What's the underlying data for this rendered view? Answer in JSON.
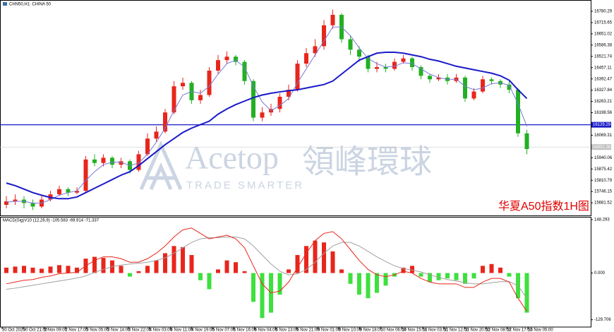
{
  "chart_data": [
    {
      "type": "candlestick",
      "title": "CHN50,H1: CHINA 50",
      "annotation": "华夏A50指数1H图",
      "watermark": {
        "brand": "Acetop",
        "chinese": "領峰環球",
        "tagline": "TRADE SMARTER"
      },
      "time_labels": [
        "30 Oct 2020",
        "30 Oct 21:00",
        "2 Nov 09:00",
        "2 Nov 17:00",
        "3 Nov 05:00",
        "3 Nov 14:00",
        "3 Nov 22:00",
        "4 Nov 03:00",
        "4 Nov 11:00",
        "4 Nov 19:00",
        "5 Nov 07:00",
        "5 Nov 16:00",
        "6 Nov 04:00",
        "6 Nov 13:00",
        "6 Nov 21:00",
        "9 Nov 01:00",
        "9 Nov 10:00",
        "9 Nov 18:00",
        "10 Nov 06:00",
        "10 Nov 15:00",
        "11 Nov 03:00",
        "11 Nov 12:00",
        "11 Nov 20:00",
        "12 Nov 08:00",
        "12 Nov 17:00",
        "13 Nov 05:00"
      ],
      "open": [
        15670,
        15690,
        15700,
        15680,
        15660,
        15700,
        15730,
        15760,
        15740,
        15750,
        15930,
        15910,
        15940,
        15900,
        15920,
        15870,
        15960,
        16050,
        16090,
        16200,
        16350,
        16370,
        16270,
        16300,
        16440,
        16500,
        16520,
        16490,
        16380,
        16170,
        16200,
        16220,
        16290,
        16330,
        16480,
        16540,
        16580,
        16700,
        16760,
        16620,
        16560,
        16520,
        16450,
        16460,
        16450,
        16490,
        16510,
        16460,
        16410,
        16390,
        16400,
        16380,
        16400,
        16280,
        16320,
        16390,
        16380,
        16360,
        16330,
        16080
      ],
      "high": [
        15720,
        15730,
        15720,
        15700,
        15720,
        15750,
        15780,
        15770,
        15770,
        15950,
        15960,
        15960,
        15950,
        15940,
        15930,
        15980,
        16080,
        16120,
        16220,
        16380,
        16400,
        16380,
        16330,
        16460,
        16530,
        16550,
        16530,
        16500,
        16390,
        16230,
        16250,
        16310,
        16360,
        16500,
        16570,
        16620,
        16730,
        16790,
        16770,
        16640,
        16580,
        16530,
        16490,
        16480,
        16510,
        16530,
        16520,
        16470,
        16420,
        16420,
        16420,
        16420,
        16410,
        16340,
        16410,
        16400,
        16390,
        16380,
        16340,
        16100
      ],
      "low": [
        15650,
        15670,
        15650,
        15640,
        15650,
        15690,
        15720,
        15720,
        15730,
        15740,
        15890,
        15890,
        15880,
        15880,
        15850,
        15860,
        15950,
        16030,
        16080,
        16190,
        16330,
        16250,
        16250,
        16290,
        16420,
        16480,
        16470,
        16360,
        16150,
        16150,
        16180,
        16200,
        16270,
        16320,
        16460,
        16520,
        16560,
        16680,
        16600,
        16530,
        16490,
        16430,
        16430,
        16430,
        16440,
        16480,
        16440,
        16390,
        16370,
        16380,
        16360,
        16370,
        16260,
        16270,
        16310,
        16360,
        16340,
        16310,
        16060,
        15960
      ],
      "close": [
        15690,
        15700,
        15680,
        15660,
        15700,
        15730,
        15760,
        15740,
        15750,
        15930,
        15910,
        15940,
        15900,
        15920,
        15870,
        15960,
        16050,
        16090,
        16200,
        16350,
        16370,
        16270,
        16300,
        16440,
        16500,
        16520,
        16490,
        16380,
        16170,
        16200,
        16220,
        16290,
        16330,
        16480,
        16540,
        16580,
        16700,
        16760,
        16620,
        16560,
        16520,
        16450,
        16460,
        16450,
        16490,
        16510,
        16460,
        16410,
        16390,
        16400,
        16380,
        16400,
        16280,
        16320,
        16390,
        16380,
        16360,
        16330,
        16080,
        15990
      ],
      "up_color": "#e8261c",
      "down_color": "#22b022",
      "overlays": [
        {
          "color": "#7878d8",
          "width": 1,
          "values": [
            15685,
            15690,
            15690,
            15680,
            15680,
            15700,
            15725,
            15740,
            15750,
            15810,
            15860,
            15900,
            15915,
            15915,
            15895,
            15910,
            15960,
            16030,
            16110,
            16210,
            16300,
            16320,
            16310,
            16350,
            16420,
            16480,
            16500,
            16460,
            16350,
            16260,
            16210,
            16240,
            16280,
            16370,
            16450,
            16530,
            16610,
            16690,
            16690,
            16640,
            16570,
            16510,
            16480,
            16460,
            16465,
            16485,
            16480,
            16450,
            16420,
            16400,
            16390,
            16390,
            16350,
            16330,
            16340,
            16365,
            16370,
            16355,
            16250,
            16120
          ]
        },
        {
          "color": "#1a1ac8",
          "width": 2,
          "values": [
            15795,
            15780,
            15760,
            15740,
            15725,
            15712,
            15705,
            15705,
            15715,
            15740,
            15765,
            15790,
            15815,
            15840,
            15860,
            15895,
            15935,
            15975,
            16015,
            16050,
            16085,
            16110,
            16130,
            16150,
            16190,
            16220,
            16245,
            16265,
            16285,
            16300,
            16310,
            16318,
            16325,
            16330,
            16340,
            16350,
            16360,
            16380,
            16420,
            16460,
            16500,
            16520,
            16540,
            16545,
            16545,
            16540,
            16530,
            16520,
            16505,
            16495,
            16480,
            16465,
            16455,
            16445,
            16435,
            16425,
            16410,
            16385,
            16330,
            16280
          ]
        }
      ],
      "hline_price": 16129.29,
      "hline_color": "#1a1ac8",
      "last_price": 16001.38,
      "ylim": [
        15609,
        16841
      ],
      "yticks": [
        16780.29,
        16715.65,
        16651.02,
        16586.38,
        16521.74,
        16457.11,
        16392.47,
        16327.84,
        16263.21,
        16198.56,
        16069.31,
        15940.06,
        15875.42,
        15810.79,
        15746.15,
        15681.52
      ]
    },
    {
      "type": "macd",
      "title": "MACD(Sig)V10 (12,26,9) -105.583 -69.914 -71.337",
      "histogram": [
        15,
        18,
        20,
        15,
        12,
        18,
        22,
        20,
        15,
        40,
        45,
        42,
        35,
        20,
        -10,
        5,
        20,
        35,
        55,
        75,
        72,
        50,
        -20,
        -45,
        10,
        35,
        30,
        5,
        -80,
        -125,
        -110,
        -60,
        10,
        50,
        75,
        90,
        85,
        60,
        10,
        -30,
        -60,
        -70,
        -55,
        -35,
        -10,
        15,
        20,
        -10,
        -25,
        -20,
        -15,
        -20,
        -30,
        -15,
        20,
        25,
        15,
        -10,
        -70,
        -110
      ],
      "main": [
        -30,
        -25,
        -20,
        -18,
        -12,
        -8,
        -2,
        0,
        2,
        20,
        35,
        45,
        45,
        40,
        30,
        30,
        40,
        55,
        75,
        100,
        120,
        125,
        110,
        95,
        100,
        105,
        95,
        70,
        20,
        -30,
        -55,
        -50,
        -25,
        15,
        55,
        90,
        110,
        115,
        95,
        65,
        35,
        10,
        -5,
        -10,
        -5,
        5,
        0,
        -15,
        -25,
        -30,
        -30,
        -30,
        -40,
        -40,
        -25,
        -15,
        -15,
        -25,
        -70,
        -106
      ],
      "signal": [
        -45,
        -42,
        -38,
        -34,
        -30,
        -26,
        -22,
        -18,
        -14,
        -8,
        2,
        10,
        18,
        22,
        25,
        27,
        30,
        35,
        42,
        55,
        70,
        85,
        95,
        98,
        98,
        100,
        100,
        95,
        75,
        50,
        25,
        5,
        -5,
        -2,
        10,
        30,
        55,
        75,
        85,
        85,
        75,
        60,
        45,
        32,
        20,
        12,
        8,
        3,
        -5,
        -12,
        -18,
        -22,
        -27,
        -30,
        -30,
        -27,
        -24,
        -24,
        -35,
        -70
      ],
      "pos_color": "#e8261c",
      "neg_color": "#3ee03e",
      "main_color": "#e8261c",
      "signal_color": "#a0a0a0",
      "ylim": [
        -150,
        154
      ],
      "yticks": [
        148.293,
        {
          "value": 0,
          "label": "0.000"
        },
        -129.706
      ]
    }
  ]
}
